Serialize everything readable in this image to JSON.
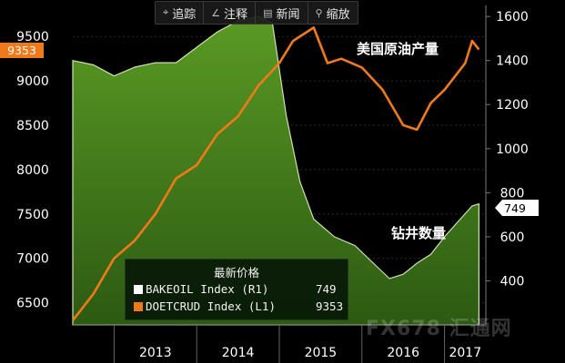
{
  "toolbar": {
    "items": [
      {
        "icon": "crosshair-icon",
        "glyph": "⌖",
        "label": "追踪"
      },
      {
        "icon": "annotate-icon",
        "glyph": "∠",
        "label": "注释"
      },
      {
        "icon": "news-icon",
        "glyph": "▤",
        "label": "新闻"
      },
      {
        "icon": "zoom-icon",
        "glyph": "⚲",
        "label": "缩放"
      }
    ]
  },
  "legend": {
    "title": "最新价格",
    "rows": [
      {
        "name": "BAKEOIL Index (R1)",
        "value": "749",
        "color": "#ffffff"
      },
      {
        "name": "DOETCRUD Index (L1)",
        "value": "9353",
        "color": "#f07a1a"
      }
    ]
  },
  "watermark": "FX678 汇通网",
  "chart_data": {
    "type": "line",
    "title": "",
    "x_labels": [
      "2013",
      "2014",
      "2015",
      "2016",
      "2017"
    ],
    "x_range": [
      "2012-07",
      "2017-07"
    ],
    "y_left": {
      "ticks": [
        6500,
        7000,
        7500,
        8000,
        8500,
        9000,
        9500
      ],
      "range": [
        6250,
        9850
      ],
      "last_value_label": "9353"
    },
    "y_right": {
      "ticks": [
        400,
        600,
        800,
        1000,
        1200,
        1400,
        1600
      ],
      "range": [
        200,
        1650
      ],
      "last_value_label": "749"
    },
    "annotations": [
      "美国原油产量",
      "钻井数量"
    ],
    "colors": {
      "production": "#f07a1a",
      "rigs_fill": "#4a7f1e",
      "rigs_line": "#cfe0b0"
    },
    "series": [
      {
        "name": "DOETCRUD Index",
        "axis": "left",
        "x": [
          "2012-07",
          "2012-10",
          "2013-01",
          "2013-04",
          "2013-07",
          "2013-10",
          "2014-01",
          "2014-04",
          "2014-07",
          "2014-10",
          "2015-01",
          "2015-03",
          "2015-06",
          "2015-08",
          "2015-10",
          "2016-01",
          "2016-04",
          "2016-07",
          "2016-09",
          "2016-11",
          "2017-01",
          "2017-04",
          "2017-05",
          "2017-06"
        ],
        "values": [
          6300,
          6600,
          7000,
          7200,
          7500,
          7900,
          8050,
          8400,
          8600,
          8950,
          9200,
          9450,
          9600,
          9200,
          9250,
          9150,
          8900,
          8500,
          8450,
          8750,
          8900,
          9200,
          9450,
          9353
        ]
      },
      {
        "name": "BAKEOIL Index",
        "axis": "right",
        "x": [
          "2012-07",
          "2012-10",
          "2013-01",
          "2013-04",
          "2013-07",
          "2013-10",
          "2014-01",
          "2014-04",
          "2014-07",
          "2014-10",
          "2014-12",
          "2015-02",
          "2015-04",
          "2015-06",
          "2015-09",
          "2015-12",
          "2016-03",
          "2016-05",
          "2016-07",
          "2016-09",
          "2016-11",
          "2017-01",
          "2017-03",
          "2017-05",
          "2017-06"
        ],
        "values": [
          1400,
          1380,
          1330,
          1370,
          1390,
          1390,
          1460,
          1530,
          1580,
          1600,
          1570,
          1150,
          850,
          680,
          600,
          560,
          470,
          410,
          430,
          480,
          520,
          600,
          670,
          740,
          749
        ]
      }
    ]
  }
}
